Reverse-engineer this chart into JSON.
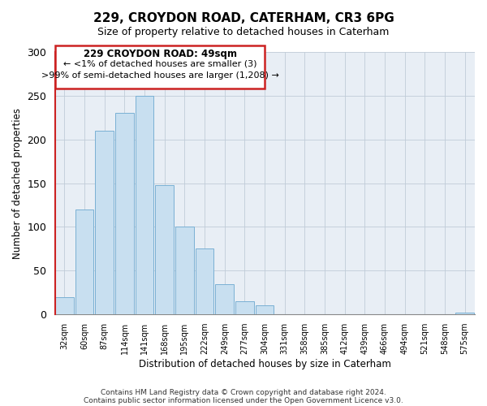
{
  "title": "229, CROYDON ROAD, CATERHAM, CR3 6PG",
  "subtitle": "Size of property relative to detached houses in Caterham",
  "xlabel": "Distribution of detached houses by size in Caterham",
  "ylabel": "Number of detached properties",
  "bar_labels": [
    "32sqm",
    "60sqm",
    "87sqm",
    "114sqm",
    "141sqm",
    "168sqm",
    "195sqm",
    "222sqm",
    "249sqm",
    "277sqm",
    "304sqm",
    "331sqm",
    "358sqm",
    "385sqm",
    "412sqm",
    "439sqm",
    "466sqm",
    "494sqm",
    "521sqm",
    "548sqm",
    "575sqm"
  ],
  "bar_values": [
    20,
    120,
    210,
    230,
    250,
    148,
    100,
    75,
    35,
    15,
    10,
    0,
    0,
    0,
    0,
    0,
    0,
    0,
    0,
    0,
    2
  ],
  "bar_color": "#c8dff0",
  "bar_edge_color": "#7ab0d4",
  "bar_face_light": "#ddeeff",
  "highlight_color": "#cc2222",
  "annotation_title": "229 CROYDON ROAD: 49sqm",
  "annotation_line1": "← <1% of detached houses are smaller (3)",
  "annotation_line2": ">99% of semi-detached houses are larger (1,208) →",
  "ylim": [
    0,
    300
  ],
  "yticks": [
    0,
    50,
    100,
    150,
    200,
    250,
    300
  ],
  "footer1": "Contains HM Land Registry data © Crown copyright and database right 2024.",
  "footer2": "Contains public sector information licensed under the Open Government Licence v3.0.",
  "bg_color": "#e8eef5"
}
